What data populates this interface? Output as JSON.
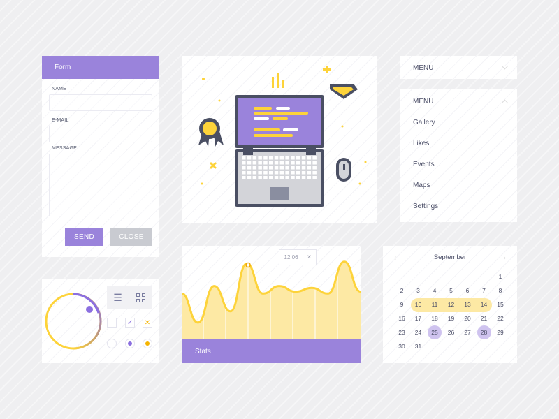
{
  "colors": {
    "purple": "#9a83db",
    "yellow": "#fdd33a",
    "light_yellow": "#fde9a4",
    "gray_button": "#c9cbd1",
    "text": "#4a4d66"
  },
  "form": {
    "title": "Form",
    "name_label": "NAME",
    "email_label": "E-MAIL",
    "message_label": "MESSAGE",
    "name_value": "",
    "email_value": "",
    "message_value": "",
    "send_label": "SEND",
    "close_label": "CLOSE"
  },
  "menu_collapsed": {
    "title": "MENU",
    "icon": "chevron-down-icon"
  },
  "menu_expanded": {
    "title": "MENU",
    "icon": "chevron-up-icon",
    "items": [
      "Gallery",
      "Likes",
      "Events",
      "Maps",
      "Settings"
    ]
  },
  "stats": {
    "title": "Stats",
    "tooltip_value": "12.06",
    "tooltip_close": "×",
    "wave_values": [
      49,
      18,
      57,
      30,
      81,
      49,
      57,
      51,
      55,
      49,
      83,
      51
    ],
    "highlight_index": 4
  },
  "calendar": {
    "month": "September",
    "prev_icon": "chevron-left-icon",
    "next_icon": "chevron-right-icon",
    "start_weekday": 6,
    "days_in_month": 31,
    "range": [
      10,
      14
    ],
    "selected": [
      25,
      28
    ]
  },
  "controls": {
    "knob_progress": 1,
    "view_icons": [
      "list-icon",
      "grid-icon"
    ],
    "checkboxes": [
      "empty",
      "checked",
      "crossed"
    ],
    "radios": [
      "empty",
      "purple",
      "yellow"
    ]
  }
}
